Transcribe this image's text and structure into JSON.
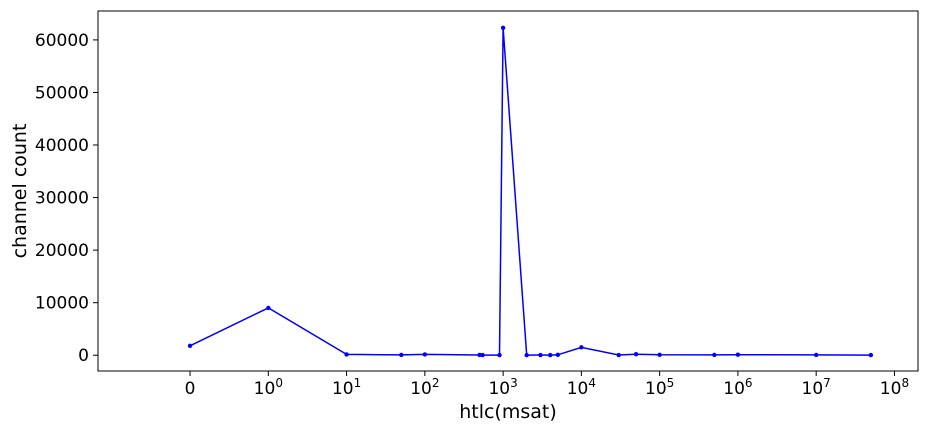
{
  "chart_data": {
    "type": "line",
    "xlabel": "htlc(msat)",
    "ylabel": "channel count",
    "x_scale": "symlog",
    "xlim": [
      -1.5,
      200000000
    ],
    "ylim": [
      -3000,
      65500
    ],
    "grid": false,
    "line_color": "#0000ff",
    "x_ticks": [
      {
        "value": 0,
        "base": "0",
        "exp": ""
      },
      {
        "value": 1,
        "base": "10",
        "exp": "0"
      },
      {
        "value": 10,
        "base": "10",
        "exp": "1"
      },
      {
        "value": 100,
        "base": "10",
        "exp": "2"
      },
      {
        "value": 1000,
        "base": "10",
        "exp": "3"
      },
      {
        "value": 10000,
        "base": "10",
        "exp": "4"
      },
      {
        "value": 100000,
        "base": "10",
        "exp": "5"
      },
      {
        "value": 1000000,
        "base": "10",
        "exp": "6"
      },
      {
        "value": 10000000,
        "base": "10",
        "exp": "7"
      },
      {
        "value": 100000000,
        "base": "10",
        "exp": "8"
      }
    ],
    "y_ticks": [
      0,
      10000,
      20000,
      30000,
      40000,
      50000,
      60000
    ],
    "series": [
      {
        "x": [
          0,
          1,
          10,
          50,
          100,
          500,
          546,
          900,
          1000,
          2000,
          3000,
          4000,
          5000,
          10000,
          30000,
          50000,
          100000,
          500000,
          1000000,
          10000000,
          50000000
        ],
        "y": [
          1800,
          9000,
          150,
          60,
          150,
          50,
          30,
          30,
          62300,
          20,
          40,
          20,
          80,
          1500,
          40,
          200,
          80,
          60,
          100,
          60,
          30
        ]
      }
    ]
  }
}
